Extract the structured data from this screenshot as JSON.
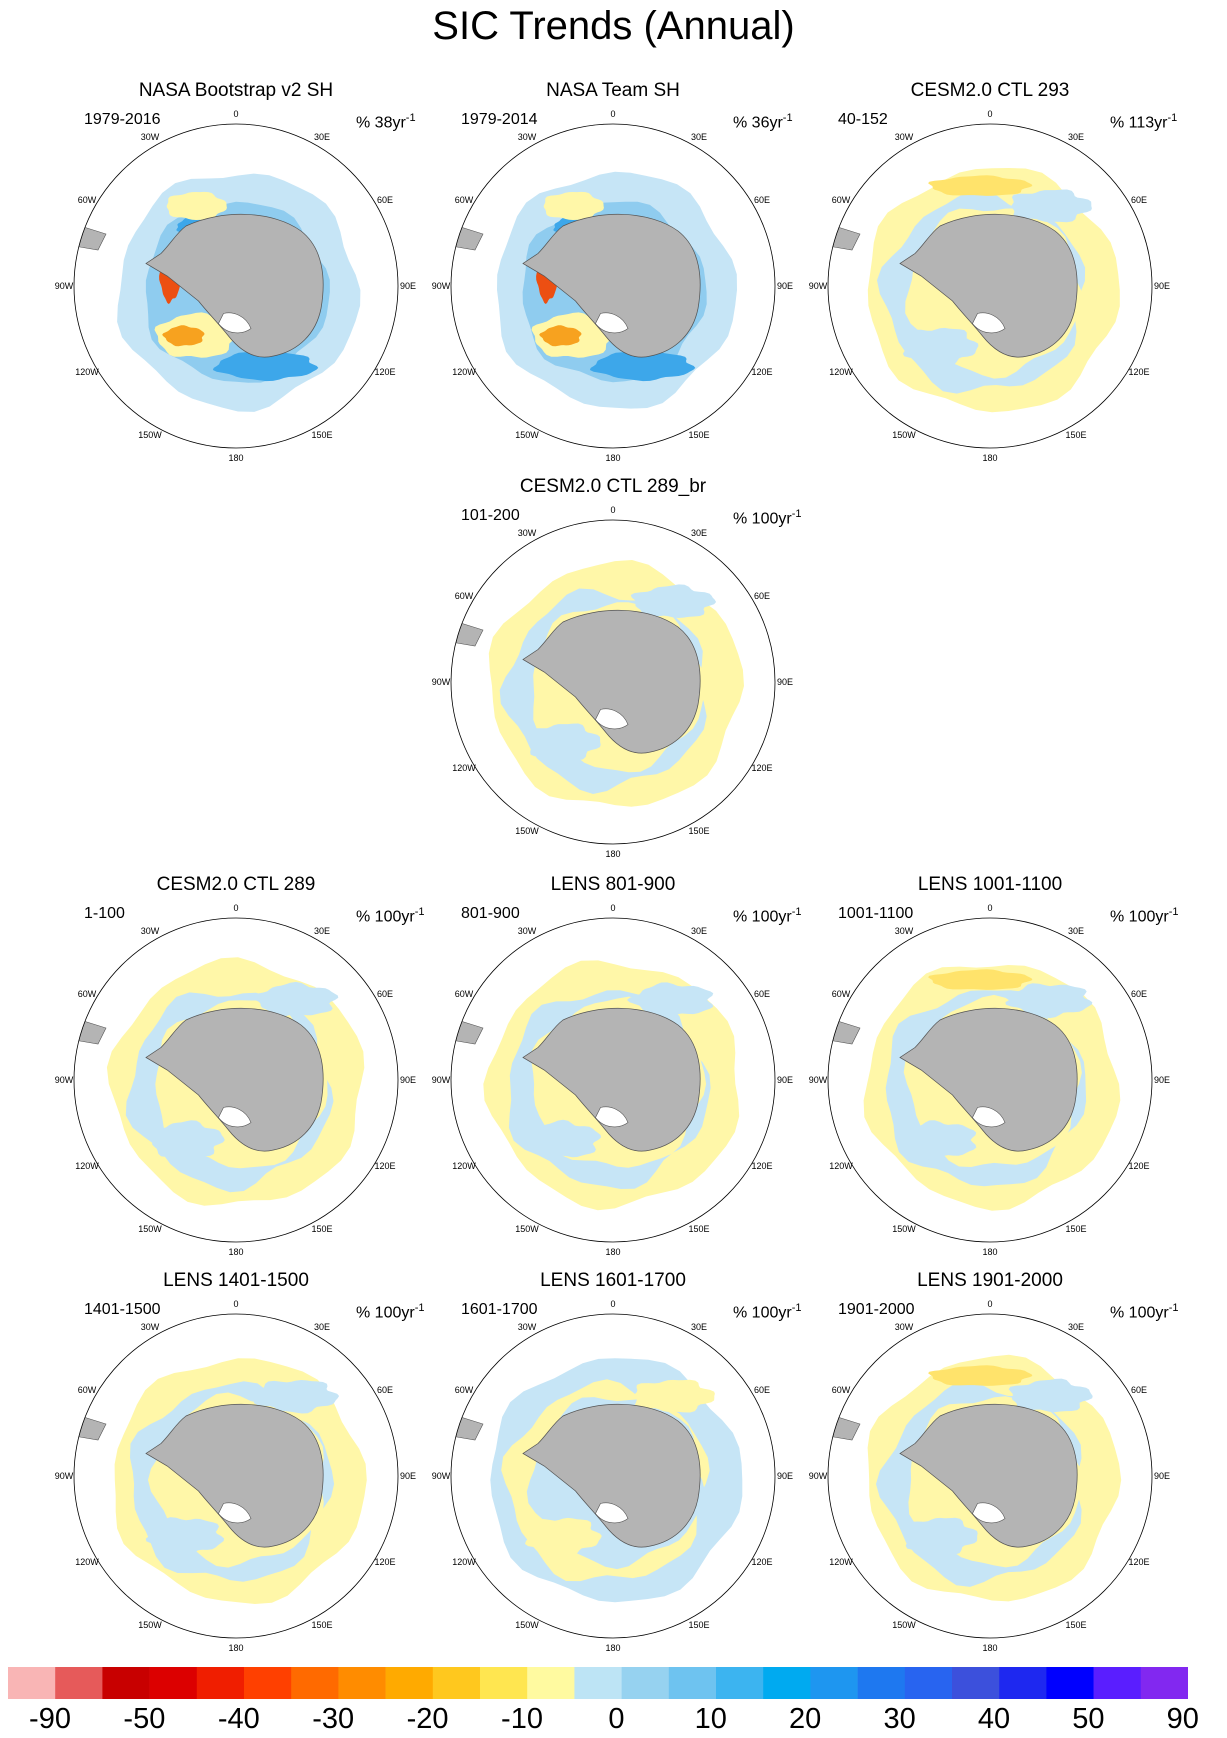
{
  "title": "SIC Trends (Annual)",
  "lon_labels": [
    "0",
    "30E",
    "60E",
    "90E",
    "120E",
    "150E",
    "180",
    "150W",
    "120W",
    "90W",
    "60W",
    "30W"
  ],
  "panels": [
    {
      "title": "NASA Bootstrap v2 SH",
      "period": "1979-2016",
      "trend": "% 38yr",
      "exp": "-1",
      "style": "obs"
    },
    {
      "title": "NASA Team SH",
      "period": "1979-2014",
      "trend": "% 36yr",
      "exp": "-1",
      "style": "obs2"
    },
    {
      "title": "CESM2.0 CTL 293",
      "period": "40-152",
      "trend": "% 113yr",
      "exp": "-1",
      "style": "yellow"
    },
    {
      "title": "CESM2.0 CTL 289_br",
      "period": "101-200",
      "trend": "% 100yr",
      "exp": "-1",
      "style": "mixed"
    },
    {
      "title": "CESM2.0 CTL 289",
      "period": "1-100",
      "trend": "% 100yr",
      "exp": "-1",
      "style": "mixed"
    },
    {
      "title": "LENS 801-900",
      "period": "801-900",
      "trend": "% 100yr",
      "exp": "-1",
      "style": "mixed"
    },
    {
      "title": "LENS 1001-1100",
      "period": "1001-1100",
      "trend": "% 100yr",
      "exp": "-1",
      "style": "yellow"
    },
    {
      "title": "LENS 1401-1500",
      "period": "1401-1500",
      "trend": "% 100yr",
      "exp": "-1",
      "style": "mixed"
    },
    {
      "title": "LENS 1601-1700",
      "period": "1601-1700",
      "trend": "% 100yr",
      "exp": "-1",
      "style": "blue"
    },
    {
      "title": "LENS 1901-2000",
      "period": "1901-2000",
      "trend": "% 100yr",
      "exp": "-1",
      "style": "yellow"
    }
  ],
  "colorbar": {
    "colors": [
      "#f9b5b5",
      "#e65a5a",
      "#c80000",
      "#dc0000",
      "#f01e00",
      "#ff4000",
      "#ff6a00",
      "#ff8c00",
      "#ffaa00",
      "#ffc81e",
      "#ffe650",
      "#fffaa0",
      "#bde4f5",
      "#96d2f0",
      "#6ec3f0",
      "#3cb4f0",
      "#00aaf0",
      "#1e96f0",
      "#1e78f0",
      "#2864f0",
      "#3c50dc",
      "#1e28f0",
      "#0000ff",
      "#5a1eff",
      "#8228f0"
    ],
    "labels": [
      "-90",
      "-50",
      "-40",
      "-30",
      "-20",
      "-10",
      "0",
      "10",
      "20",
      "30",
      "40",
      "50",
      "90"
    ]
  },
  "colors": {
    "land": "#b4b4b4",
    "yellow": "#fff7a8",
    "blue": "#c6e5f6",
    "blue_mid": "#8fccef",
    "blue_dark": "#3da7ea",
    "orange": "#f7a21f",
    "red": "#ec4f12"
  }
}
